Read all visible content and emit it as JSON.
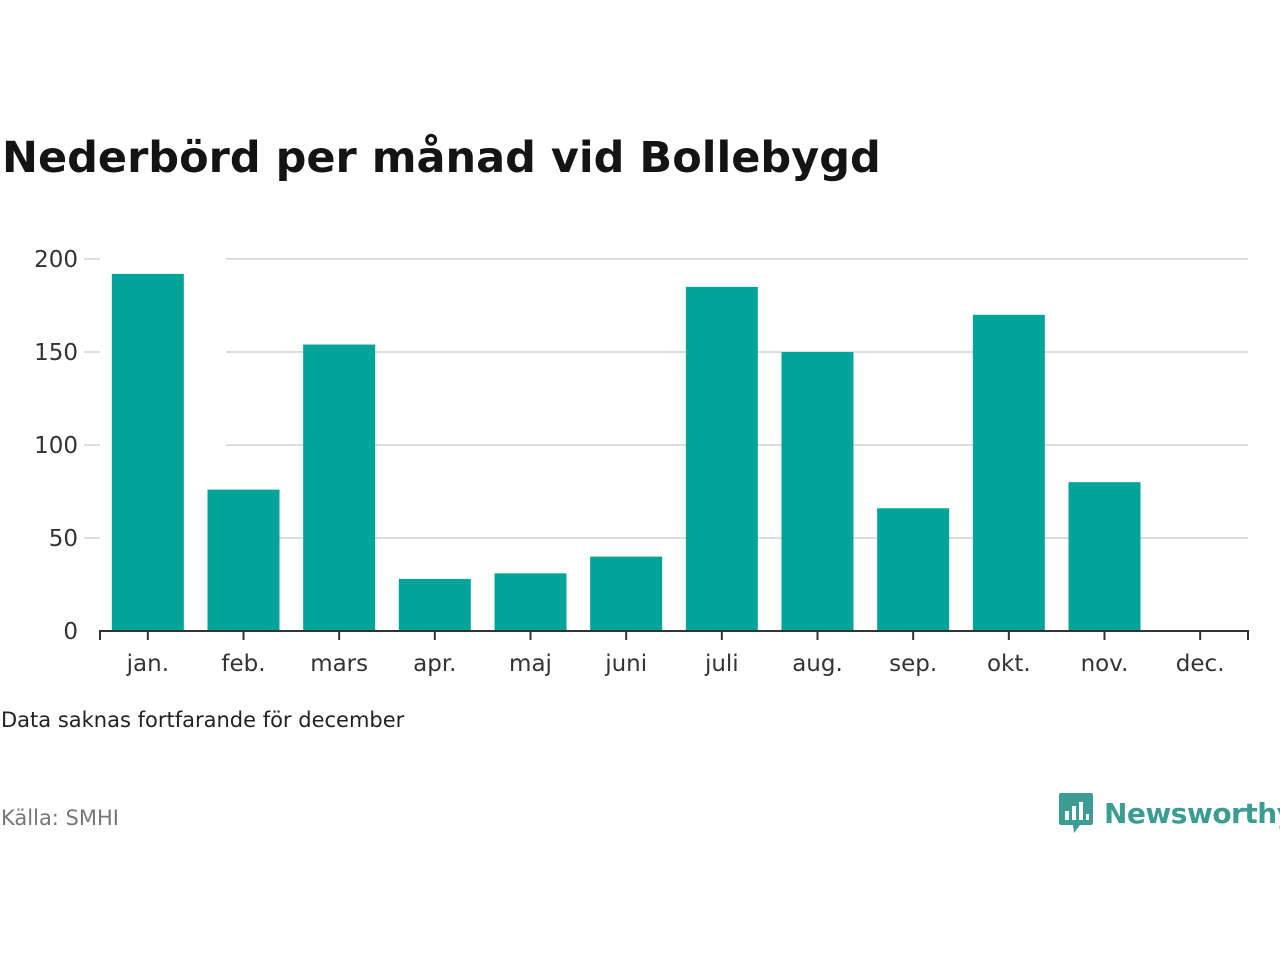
{
  "chart_data": {
    "type": "bar",
    "title": "Nederbörd per månad vid Bollebygd",
    "categories": [
      "jan.",
      "feb.",
      "mars",
      "apr.",
      "maj",
      "juni",
      "juli",
      "aug.",
      "sep.",
      "okt.",
      "nov.",
      "dec."
    ],
    "values": [
      192,
      76,
      154,
      28,
      31,
      40,
      185,
      150,
      66,
      170,
      80,
      null
    ],
    "y_ticks": [
      "0",
      "50",
      "100",
      "150",
      "200"
    ],
    "ylim": [
      0,
      200
    ],
    "xlabel": "",
    "ylabel": "",
    "grid": true,
    "bar_color": "#00a499"
  },
  "note": "Data saknas fortfarande för december",
  "source": "Källa: SMHI",
  "brand": {
    "name": "Newsworthy",
    "icon": "newsworthy-logo-icon",
    "color": "#3a9c92"
  }
}
